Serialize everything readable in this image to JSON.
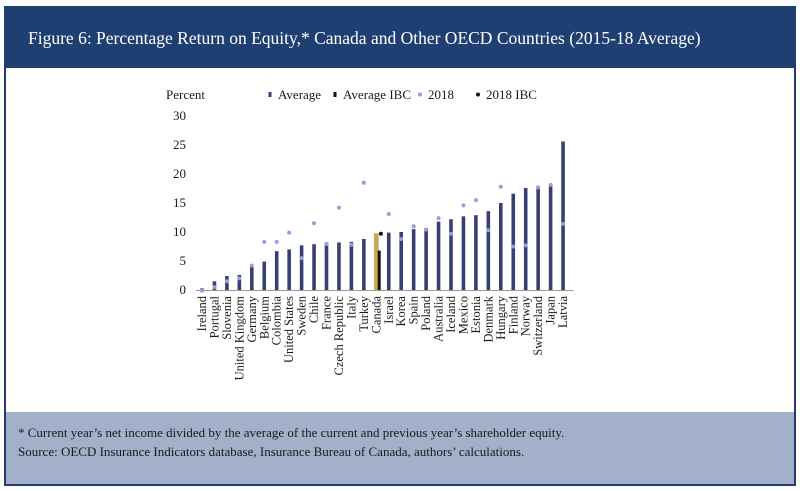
{
  "figure": {
    "title": "Figure 6: Percentage Return on Equity,* Canada and Other OECD Countries (2015-18 Average)",
    "footnote": "* Current year’s net income divided by the average of the current and previous year’s shareholder equity.",
    "source": "Source: OECD Insurance Indicators database, Insurance Bureau of Canada, authors’ calculations."
  },
  "chart_data": {
    "type": "bar",
    "ylabel": "Percent",
    "ylim": [
      0,
      30
    ],
    "yticks": [
      "0",
      "5",
      "10",
      "15",
      "20",
      "25",
      "30"
    ],
    "grid": false,
    "legend_position": "top",
    "categories": [
      "Ireland",
      "Portugal",
      "Slovenia",
      "United Kingdom",
      "Germany",
      "Belgium",
      "Colombia",
      "United States",
      "Sweden",
      "Chile",
      "France",
      "Czech Republic",
      "Italy",
      "Turkey",
      "Canada",
      "Israel",
      "Korea",
      "Spain",
      "Poland",
      "Australia",
      "Iceland",
      "Mexico",
      "Estonia",
      "Denmark",
      "Hungary",
      "Finland",
      "Norway",
      "Switzerland",
      "Japan",
      "Latvia"
    ],
    "series": [
      {
        "name": "Average",
        "kind": "bar",
        "color": "#3a3f73",
        "values": [
          0.3,
          1.5,
          2.4,
          2.6,
          4.0,
          4.9,
          6.7,
          7.0,
          7.7,
          7.9,
          8.2,
          8.2,
          8.3,
          8.8,
          null,
          9.9,
          10.0,
          10.5,
          10.7,
          11.8,
          12.2,
          12.7,
          12.9,
          13.6,
          15.0,
          16.6,
          17.6,
          17.9,
          18.2,
          25.6
        ]
      },
      {
        "name": "Average IBC",
        "kind": "bar",
        "color": "#111111",
        "values": [
          null,
          null,
          null,
          null,
          null,
          null,
          null,
          null,
          null,
          null,
          null,
          null,
          null,
          null,
          6.8,
          null,
          null,
          null,
          null,
          null,
          null,
          null,
          null,
          null,
          null,
          null,
          null,
          null,
          null,
          null
        ]
      },
      {
        "name": "2018",
        "kind": "marker",
        "color": "#9a9ddd",
        "values": [
          -0.1,
          0.5,
          1.5,
          2.0,
          4.2,
          8.3,
          8.3,
          9.9,
          5.5,
          11.5,
          7.9,
          14.2,
          7.8,
          18.5,
          null,
          13.1,
          8.8,
          11.0,
          10.4,
          12.4,
          9.7,
          14.6,
          15.5,
          10.3,
          17.8,
          7.5,
          7.7,
          17.7,
          18.1,
          11.4
        ]
      },
      {
        "name": "2018 IBC",
        "kind": "marker",
        "color": "#111111",
        "values": [
          null,
          null,
          null,
          null,
          null,
          null,
          null,
          null,
          null,
          null,
          null,
          null,
          null,
          null,
          9.7,
          null,
          null,
          null,
          null,
          null,
          null,
          null,
          null,
          null,
          null,
          null,
          null,
          null,
          null,
          null
        ]
      }
    ],
    "highlight": {
      "category": "Canada",
      "color": "#c9a85a",
      "value": 9.8
    }
  }
}
